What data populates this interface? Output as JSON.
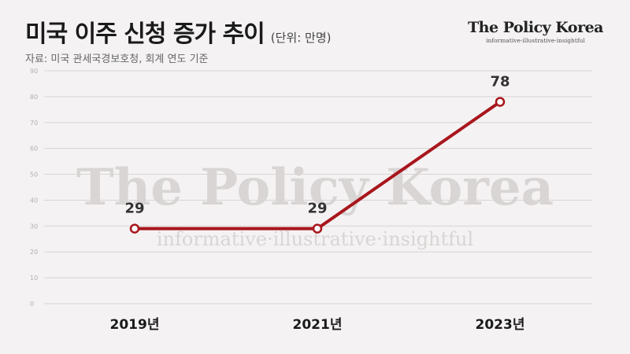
{
  "header": {
    "title": "미국 이주 신청 증가 추이",
    "unit": "(단위: 만명)",
    "source": "자료: 미국 관세국경보호청, 회계 연도 기준"
  },
  "brand": {
    "name": "The Policy Korea",
    "tagline": "informative·illustrative·insightful"
  },
  "chart_data": {
    "type": "line",
    "categories": [
      "2019년",
      "2021년",
      "2023년"
    ],
    "values": [
      29,
      29,
      78
    ],
    "data_labels": [
      "29",
      "29",
      "78"
    ],
    "ylim": [
      0,
      90
    ],
    "yticks": [
      0,
      10,
      20,
      30,
      40,
      50,
      60,
      70,
      80,
      90
    ],
    "grid": true,
    "line_color": "#a8161c"
  }
}
